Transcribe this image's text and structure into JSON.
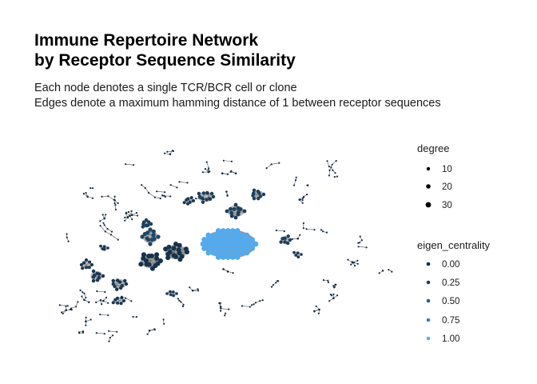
{
  "chart_data": {
    "type": "network",
    "title": [
      "Immune Repertoire Network",
      "by Receptor Sequence Similarity"
    ],
    "subtitle": [
      "Each node denotes a single TCR/BCR cell or clone",
      "Edges denote a maximum hamming distance of 1 between receptor sequences"
    ],
    "legend_position": "right",
    "legends": {
      "degree": {
        "title": "degree",
        "entries": [
          {
            "label": "10",
            "value": 10
          },
          {
            "label": "20",
            "value": 20
          },
          {
            "label": "30",
            "value": 30
          }
        ]
      },
      "eigen_centrality": {
        "title": "eigen_centrality",
        "entries": [
          {
            "label": "0.00",
            "value": 0.0,
            "color": "#132b43"
          },
          {
            "label": "0.25",
            "value": 0.25,
            "color": "#1d3f5e"
          },
          {
            "label": "0.50",
            "value": 0.5,
            "color": "#2b5f8c"
          },
          {
            "label": "0.75",
            "value": 0.75,
            "color": "#3c82bd"
          },
          {
            "label": "1.00",
            "value": 1.0,
            "color": "#56b1f7"
          }
        ]
      }
    },
    "color_scale": {
      "low": "#132b43",
      "high": "#56b1f7"
    }
  }
}
